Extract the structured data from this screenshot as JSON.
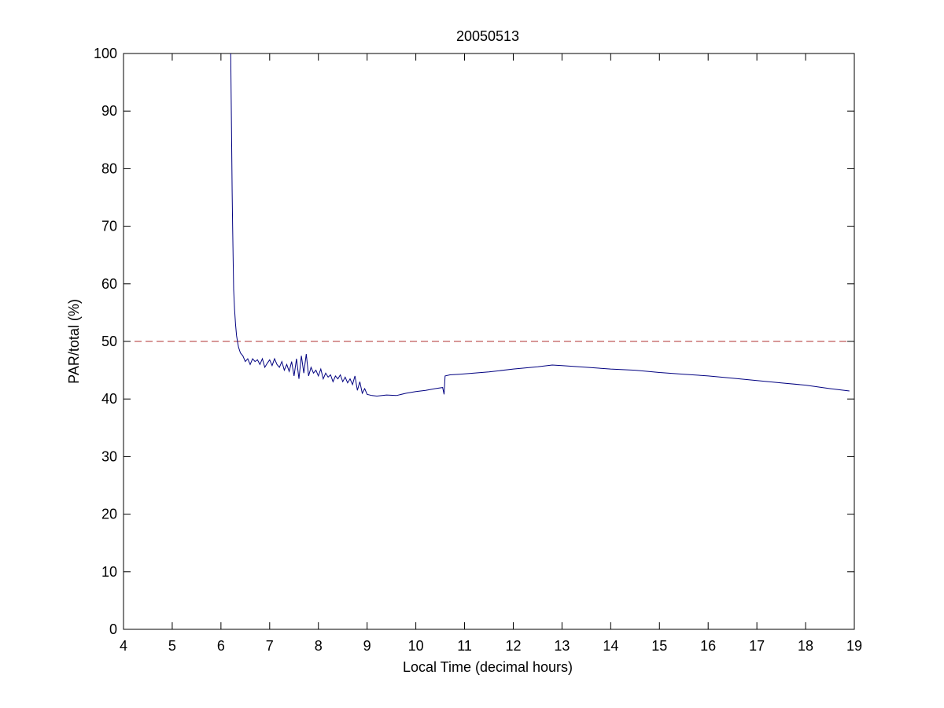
{
  "chart_data": {
    "type": "line",
    "title": "20050513",
    "xlabel": "Local Time (decimal hours)",
    "ylabel": "PAR/total (%)",
    "xlim": [
      4,
      19
    ],
    "ylim": [
      0,
      100
    ],
    "xticks": [
      4,
      5,
      6,
      7,
      8,
      9,
      10,
      11,
      12,
      13,
      14,
      15,
      16,
      17,
      18,
      19
    ],
    "yticks": [
      0,
      10,
      20,
      30,
      40,
      50,
      60,
      70,
      80,
      90,
      100
    ],
    "grid": false,
    "legend": "none",
    "reference_line": {
      "y": 50,
      "style": "dashed",
      "color": "#b03030"
    },
    "series": [
      {
        "color": "#000080",
        "x": [
          6.2,
          6.21,
          6.22,
          6.23,
          6.24,
          6.25,
          6.26,
          6.28,
          6.3,
          6.32,
          6.34,
          6.36,
          6.38,
          6.4,
          6.45,
          6.5,
          6.55,
          6.6,
          6.65,
          6.7,
          6.75,
          6.8,
          6.85,
          6.9,
          6.95,
          7.0,
          7.05,
          7.1,
          7.15,
          7.2,
          7.25,
          7.3,
          7.35,
          7.4,
          7.45,
          7.5,
          7.55,
          7.6,
          7.65,
          7.7,
          7.75,
          7.8,
          7.85,
          7.9,
          7.95,
          8.0,
          8.05,
          8.1,
          8.15,
          8.2,
          8.25,
          8.3,
          8.35,
          8.4,
          8.45,
          8.5,
          8.55,
          8.6,
          8.65,
          8.7,
          8.75,
          8.8,
          8.85,
          8.9,
          8.95,
          9.0,
          9.1,
          9.2,
          9.4,
          9.6,
          9.8,
          10.0,
          10.2,
          10.4,
          10.55,
          10.58,
          10.6,
          10.7,
          10.9,
          11.2,
          11.5,
          12.0,
          12.5,
          12.8,
          13.0,
          13.5,
          14.0,
          14.5,
          15.0,
          15.5,
          16.0,
          16.5,
          17.0,
          17.5,
          18.0,
          18.5,
          18.9
        ],
        "y": [
          100.0,
          92.0,
          84.0,
          76.0,
          70.0,
          64.0,
          59.0,
          55.5,
          53.0,
          51.0,
          50.0,
          49.0,
          48.5,
          48.0,
          47.5,
          46.5,
          47.0,
          46.0,
          47.0,
          46.5,
          46.8,
          46.0,
          47.0,
          45.5,
          46.2,
          46.8,
          45.8,
          47.0,
          46.0,
          45.5,
          46.5,
          45.0,
          46.0,
          44.8,
          46.5,
          44.0,
          47.0,
          43.5,
          47.5,
          44.5,
          47.8,
          44.0,
          45.5,
          44.5,
          45.0,
          44.0,
          45.2,
          43.5,
          44.5,
          43.8,
          44.2,
          43.0,
          44.0,
          43.5,
          44.2,
          43.0,
          43.8,
          42.8,
          43.5,
          42.5,
          44.0,
          41.5,
          43.0,
          41.0,
          41.8,
          40.8,
          40.6,
          40.5,
          40.7,
          40.6,
          41.0,
          41.3,
          41.5,
          41.8,
          42.0,
          40.8,
          44.0,
          44.2,
          44.3,
          44.5,
          44.7,
          45.2,
          45.6,
          45.9,
          45.8,
          45.5,
          45.2,
          45.0,
          44.6,
          44.3,
          44.0,
          43.6,
          43.2,
          42.8,
          42.4,
          41.8,
          41.4
        ]
      }
    ]
  }
}
